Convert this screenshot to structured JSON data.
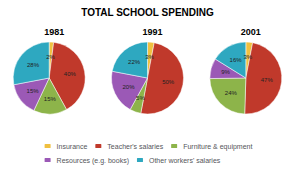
{
  "chart_data": {
    "type": "pie",
    "title": "TOTAL SCHOOL SPENDING",
    "categories": [
      "Insurance",
      "Teacher's salaries",
      "Furniture & equipment",
      "Resources (e.g. books)",
      "Other workers' salaries"
    ],
    "colors": [
      "#f0c040",
      "#c0392b",
      "#8db44a",
      "#9b59b6",
      "#2ea8c0"
    ],
    "series": [
      {
        "name": "1981",
        "values": [
          2,
          40,
          15,
          15,
          28
        ],
        "value_labels": [
          "2%",
          "40%",
          "15%",
          "15%",
          "28%"
        ]
      },
      {
        "name": "1991",
        "values": [
          3,
          50,
          5,
          20,
          22
        ],
        "value_labels": [
          "3%",
          "50%",
          "5%",
          "20%",
          "22%"
        ]
      },
      {
        "name": "2001",
        "values": [
          3,
          47,
          24,
          9,
          16
        ],
        "value_labels": [
          "3%",
          "47%",
          "24%",
          "9%",
          "16%"
        ]
      }
    ],
    "data_labels": true,
    "legend": "bottom"
  }
}
